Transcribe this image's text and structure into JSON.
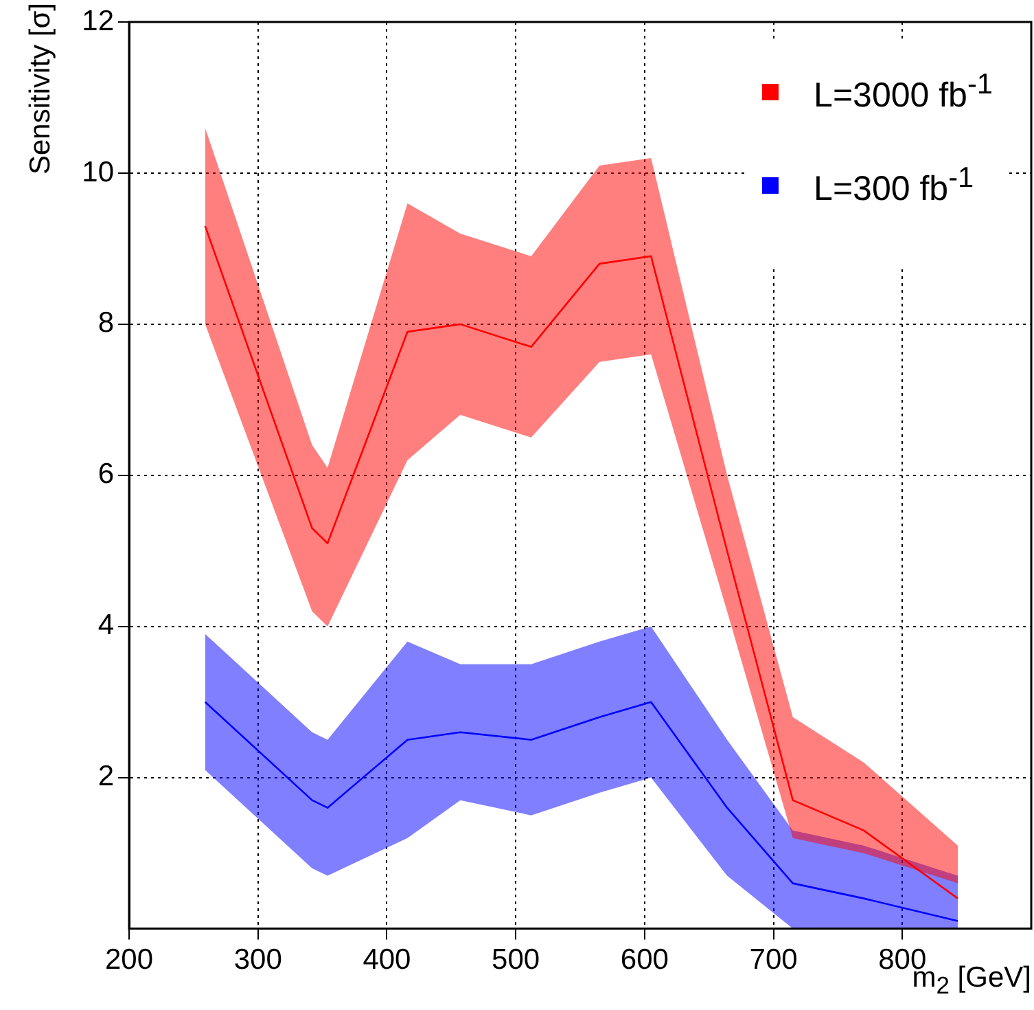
{
  "chart_data": {
    "type": "line",
    "xlabel": "m$_{2}$ [GeV]",
    "ylabel": "Sensitivity [σ]",
    "x": [
      259,
      342,
      354,
      416,
      457,
      512,
      565,
      605,
      664,
      715,
      770,
      843
    ],
    "series": [
      {
        "name": "L=3000 fb$^{-1}$",
        "color": "#ff0000",
        "values": [
          9.3,
          5.3,
          5.1,
          7.9,
          8.0,
          7.7,
          8.8,
          8.9,
          5.0,
          1.7,
          1.3,
          0.4
        ],
        "lower": [
          8.0,
          4.2,
          4.0,
          6.2,
          6.8,
          6.5,
          7.5,
          7.6,
          4.2,
          1.2,
          1.0,
          0.6
        ],
        "upper": [
          10.6,
          6.4,
          6.1,
          9.6,
          9.2,
          8.9,
          10.1,
          10.2,
          6.0,
          2.8,
          2.2,
          1.1
        ]
      },
      {
        "name": "L=300 fb$^{-1}$",
        "color": "#0000ff",
        "values": [
          3.0,
          1.7,
          1.6,
          2.5,
          2.6,
          2.5,
          2.8,
          3.0,
          1.6,
          0.6,
          0.4,
          0.1
        ],
        "lower": [
          2.1,
          0.8,
          0.7,
          1.2,
          1.7,
          1.5,
          1.8,
          2.0,
          0.7,
          0.0,
          0.0,
          0.0
        ],
        "upper": [
          3.9,
          2.6,
          2.5,
          3.8,
          3.5,
          3.5,
          3.8,
          4.0,
          2.5,
          1.3,
          1.1,
          0.7
        ]
      }
    ],
    "xlim": [
      200,
      900
    ],
    "xticks": [
      200,
      300,
      400,
      500,
      600,
      700,
      800
    ],
    "ylim": [
      0,
      12
    ],
    "yticks": [
      2,
      4,
      6,
      8,
      10,
      12
    ],
    "grid": true,
    "legend": "top right",
    "marker": "none",
    "line_style": "solid"
  }
}
